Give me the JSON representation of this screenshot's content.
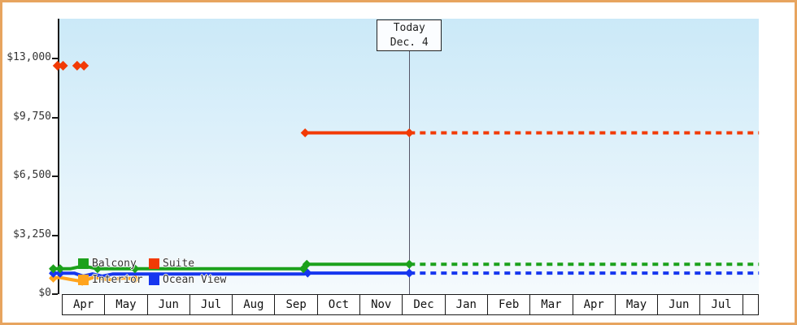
{
  "frame": {
    "border_color": "#e7a45f"
  },
  "today_marker": {
    "line1": "Today",
    "line2": "Dec. 4",
    "m": 8.17
  },
  "legend": {
    "rows": [
      [
        {
          "label": "Balcony",
          "color": "#1ca11c"
        },
        {
          "label": "Suite",
          "color": "#f23a05"
        }
      ],
      [
        {
          "label": "Interior",
          "color": "#ffa41e"
        },
        {
          "label": "Ocean View",
          "color": "#1636ef"
        }
      ]
    ]
  },
  "chart_data": {
    "type": "line",
    "title": "",
    "xlabel": "",
    "ylabel": "",
    "x_tick_labels": [
      "Apr",
      "May",
      "Jun",
      "Jul",
      "Aug",
      "Sep",
      "Oct",
      "Nov",
      "Dec",
      "Jan",
      "Feb",
      "Mar",
      "Apr",
      "May",
      "Jun",
      "Jul"
    ],
    "y_ticks": [
      {
        "label": "$0",
        "value": 0
      },
      {
        "label": "$3,250",
        "value": 3250
      },
      {
        "label": "$6,500",
        "value": 6500
      },
      {
        "label": "$9,750",
        "value": 9750
      },
      {
        "label": "$13,000",
        "value": 13000
      }
    ],
    "ylim": [
      0,
      15200
    ],
    "grid": false,
    "legend_position": "inside-bottom-left",
    "today": {
      "label": "Today Dec. 4",
      "m": 8.17
    },
    "series": [
      {
        "id": "interior",
        "name": "Interior",
        "color": "#ffa41e",
        "solid": [
          [
            -0.28,
            870
          ],
          [
            -0.05,
            920
          ],
          [
            0.25,
            790
          ],
          [
            0.48,
            700
          ],
          [
            0.75,
            930
          ],
          [
            1.1,
            790
          ],
          [
            1.45,
            890
          ],
          [
            1.72,
            840
          ]
        ],
        "markers": [
          [
            -0.2,
            880
          ],
          [
            0.48,
            700
          ],
          [
            1.72,
            840
          ]
        ]
      },
      {
        "id": "ocean_view",
        "name": "Ocean View",
        "color": "#1636ef",
        "solid": [
          [
            -0.28,
            1150
          ],
          [
            0.3,
            1150
          ],
          [
            0.5,
            990
          ],
          [
            0.72,
            1110
          ],
          [
            0.95,
            990
          ],
          [
            1.2,
            1110
          ],
          [
            5.7,
            1110
          ],
          [
            5.78,
            1160
          ],
          [
            8.17,
            1160
          ]
        ],
        "dotted": [
          [
            8.17,
            1160
          ],
          [
            16.39,
            1160
          ]
        ],
        "markers": [
          [
            -0.2,
            1150
          ],
          [
            -0.04,
            1150
          ],
          [
            5.78,
            1160
          ],
          [
            8.17,
            1160
          ]
        ]
      },
      {
        "id": "balcony",
        "name": "Balcony",
        "color": "#1ca11c",
        "solid": [
          [
            -0.28,
            1400
          ],
          [
            0.2,
            1400
          ],
          [
            0.5,
            1550
          ],
          [
            0.84,
            1400
          ],
          [
            5.68,
            1400
          ],
          [
            5.76,
            1650
          ],
          [
            8.17,
            1650
          ]
        ],
        "dotted": [
          [
            8.17,
            1650
          ],
          [
            16.39,
            1650
          ]
        ],
        "markers": [
          [
            -0.2,
            1400
          ],
          [
            -0.04,
            1400
          ],
          [
            0.84,
            1400
          ],
          [
            1.72,
            1400
          ],
          [
            5.68,
            1400
          ],
          [
            5.76,
            1650
          ],
          [
            8.17,
            1650
          ]
        ]
      },
      {
        "id": "suite",
        "name": "Suite",
        "color": "#f23a05",
        "scatter": [
          [
            -0.1,
            12600
          ],
          [
            0.03,
            12600
          ],
          [
            0.36,
            12600
          ],
          [
            0.52,
            12600
          ]
        ],
        "solid": [
          [
            5.72,
            8900
          ],
          [
            8.17,
            8900
          ]
        ],
        "dotted": [
          [
            8.17,
            8900
          ],
          [
            16.39,
            8900
          ]
        ],
        "markers": [
          [
            5.72,
            8900
          ],
          [
            8.17,
            8900
          ]
        ]
      }
    ]
  }
}
